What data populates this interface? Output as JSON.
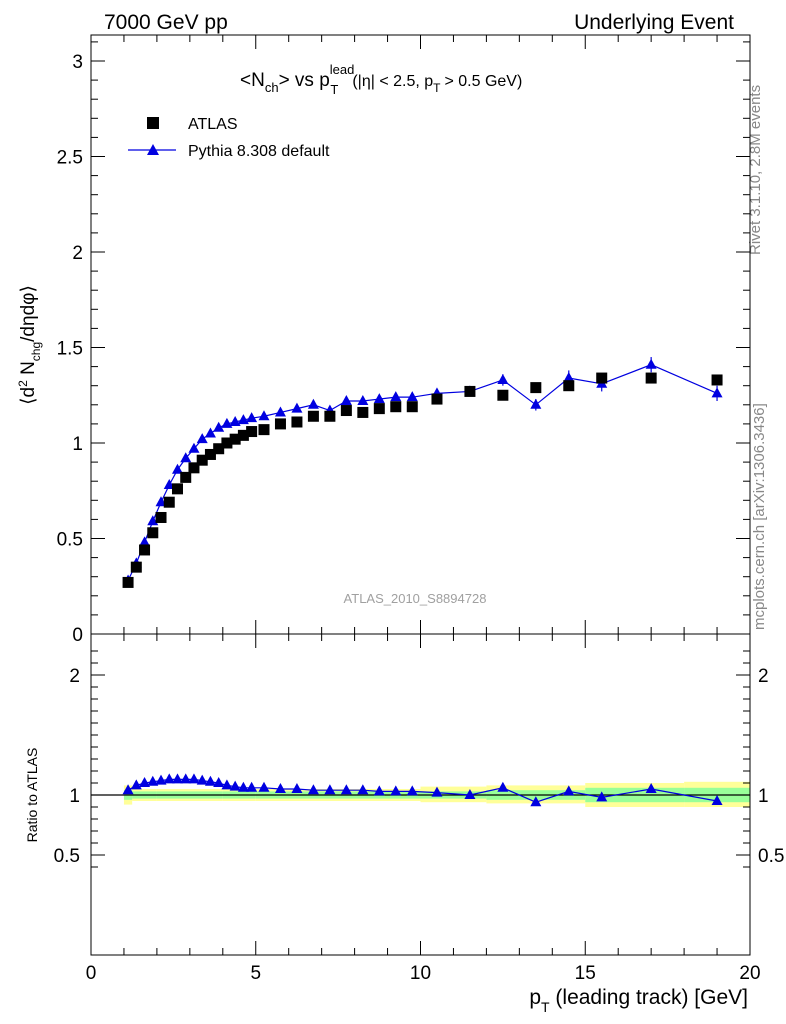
{
  "header": {
    "left": "7000 GeV pp",
    "right": "Underlying Event"
  },
  "sidebar": {
    "rivet": "Rivet 3.1.10,  2.8M events",
    "mcplots": "mcplots.cern.ch [arXiv:1306.3436]"
  },
  "plot_title": {
    "main": "<N",
    "main_sub": "ch",
    "main_mid": "> vs p",
    "main_sup": "lead",
    "main_sub2": "T",
    "cuts": "(|η| < 2.5, p",
    "cuts_sub": "T",
    "cuts_end": "> 0.5 GeV)"
  },
  "analysis_id": "ATLAS_2010_S8894728",
  "colors": {
    "data": "#000000",
    "mc": "#0000e0",
    "band_inner": "#99ff99",
    "band_outer": "#ffff99"
  },
  "chart_data": [
    {
      "type": "scatter",
      "panel": "main",
      "ylabel": "⟨d² N_chg/dηdφ⟩",
      "xlim": [
        0,
        20
      ],
      "ylim": [
        0,
        3.15
      ],
      "yticks": [
        "0",
        "0.5",
        "1",
        "1.5",
        "2",
        "2.5",
        "3"
      ],
      "legend_position": "top-left",
      "series": [
        {
          "name": "ATLAS",
          "marker": "square",
          "x": [
            1.125,
            1.375,
            1.625,
            1.875,
            2.125,
            2.375,
            2.625,
            2.875,
            3.125,
            3.375,
            3.625,
            3.875,
            4.125,
            4.375,
            4.625,
            4.875,
            5.25,
            5.75,
            6.25,
            6.75,
            7.25,
            7.75,
            8.25,
            8.75,
            9.25,
            9.75,
            10.5,
            11.5,
            12.5,
            13.5,
            14.5,
            15.5,
            17,
            19
          ],
          "y": [
            0.27,
            0.35,
            0.44,
            0.53,
            0.61,
            0.69,
            0.76,
            0.82,
            0.87,
            0.91,
            0.94,
            0.97,
            1.0,
            1.02,
            1.04,
            1.06,
            1.07,
            1.1,
            1.11,
            1.14,
            1.14,
            1.17,
            1.16,
            1.18,
            1.19,
            1.19,
            1.23,
            1.27,
            1.25,
            1.29,
            1.3,
            1.34,
            1.34,
            1.33
          ]
        },
        {
          "name": "Pythia 8.308 default",
          "marker": "triangle",
          "x": [
            1.125,
            1.375,
            1.625,
            1.875,
            2.125,
            2.375,
            2.625,
            2.875,
            3.125,
            3.375,
            3.625,
            3.875,
            4.125,
            4.375,
            4.625,
            4.875,
            5.25,
            5.75,
            6.25,
            6.75,
            7.25,
            7.75,
            8.25,
            8.75,
            9.25,
            9.75,
            10.5,
            11.5,
            12.5,
            13.5,
            14.5,
            15.5,
            17,
            19
          ],
          "y": [
            0.28,
            0.37,
            0.48,
            0.59,
            0.69,
            0.78,
            0.86,
            0.92,
            0.97,
            1.02,
            1.05,
            1.08,
            1.1,
            1.11,
            1.12,
            1.13,
            1.14,
            1.16,
            1.18,
            1.2,
            1.17,
            1.22,
            1.22,
            1.23,
            1.24,
            1.24,
            1.26,
            1.27,
            1.33,
            1.2,
            1.34,
            1.31,
            1.41,
            1.26
          ],
          "yerr": [
            0.005,
            0.005,
            0.005,
            0.005,
            0.005,
            0.005,
            0.005,
            0.005,
            0.005,
            0.005,
            0.005,
            0.005,
            0.005,
            0.005,
            0.005,
            0.005,
            0.01,
            0.01,
            0.01,
            0.01,
            0.01,
            0.01,
            0.01,
            0.01,
            0.015,
            0.02,
            0.02,
            0.02,
            0.03,
            0.03,
            0.04,
            0.04,
            0.04,
            0.04
          ]
        }
      ]
    },
    {
      "type": "line",
      "panel": "ratio",
      "ylabel": "Ratio to ATLAS",
      "xlabel": "p_T (leading track) [GeV]",
      "xlim": [
        0,
        20
      ],
      "ylim": [
        0.35,
        2.3
      ],
      "xticks": [
        "0",
        "5",
        "10",
        "15",
        "20"
      ],
      "yticks": [
        "0.5",
        "1",
        "2"
      ],
      "series": [
        {
          "name": "Pythia 8.308 default",
          "x": [
            1.125,
            1.375,
            1.625,
            1.875,
            2.125,
            2.375,
            2.625,
            2.875,
            3.125,
            3.375,
            3.625,
            3.875,
            4.125,
            4.375,
            4.625,
            4.875,
            5.25,
            5.75,
            6.25,
            6.75,
            7.25,
            7.75,
            8.25,
            8.75,
            9.25,
            9.75,
            10.5,
            11.5,
            12.5,
            13.5,
            14.5,
            15.5,
            17,
            19
          ],
          "y": [
            1.04,
            1.08,
            1.1,
            1.11,
            1.12,
            1.13,
            1.13,
            1.13,
            1.13,
            1.12,
            1.11,
            1.1,
            1.08,
            1.07,
            1.06,
            1.06,
            1.06,
            1.05,
            1.05,
            1.04,
            1.04,
            1.04,
            1.04,
            1.03,
            1.03,
            1.03,
            1.02,
            1.0,
            1.06,
            0.94,
            1.03,
            0.98,
            1.05,
            0.95
          ],
          "yerr": [
            0.005,
            0.005,
            0.005,
            0.005,
            0.005,
            0.005,
            0.005,
            0.005,
            0.005,
            0.005,
            0.005,
            0.005,
            0.005,
            0.005,
            0.005,
            0.005,
            0.01,
            0.01,
            0.01,
            0.01,
            0.01,
            0.01,
            0.01,
            0.01,
            0.01,
            0.015,
            0.015,
            0.015,
            0.02,
            0.02,
            0.03,
            0.03,
            0.03,
            0.03
          ]
        },
        {
          "name": "ATLAS uncertainty band",
          "x_edges": [
            1,
            1.25,
            2,
            4,
            5,
            10,
            12,
            15,
            18,
            20
          ],
          "stat_lo": [
            0.96,
            0.97,
            0.97,
            0.97,
            0.97,
            0.97,
            0.96,
            0.94,
            0.94
          ],
          "stat_hi": [
            1.04,
            1.03,
            1.03,
            1.03,
            1.03,
            1.03,
            1.04,
            1.06,
            1.06
          ],
          "tot_lo": [
            0.92,
            0.95,
            0.95,
            0.95,
            0.95,
            0.94,
            0.93,
            0.9,
            0.9
          ],
          "tot_hi": [
            1.08,
            1.05,
            1.05,
            1.05,
            1.05,
            1.07,
            1.08,
            1.1,
            1.11
          ]
        }
      ]
    }
  ]
}
